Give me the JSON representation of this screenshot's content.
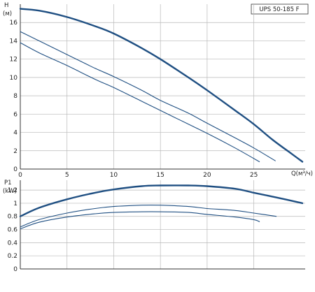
{
  "chart_data": [
    {
      "type": "line",
      "title": "UPS 50-185 F",
      "ylabel_symbol": "H",
      "ylabel_unit": "(м)",
      "xlabel": "Q(м³/ч)",
      "x_ticks": [
        0,
        5,
        10,
        15,
        20,
        25
      ],
      "y_ticks": [
        0,
        2,
        4,
        6,
        8,
        10,
        12,
        14,
        16
      ],
      "xlim": [
        0,
        30.5
      ],
      "ylim": [
        0,
        18
      ],
      "grid": true,
      "colors": {
        "curve": "#1f4f82",
        "grid": "#b8b8b8",
        "axis": "#333333"
      },
      "series": [
        {
          "stroke": "thick",
          "points": [
            [
              0,
              17.5
            ],
            [
              2,
              17.3
            ],
            [
              5,
              16.6
            ],
            [
              8,
              15.6
            ],
            [
              10,
              14.8
            ],
            [
              13,
              13.2
            ],
            [
              15,
              12.0
            ],
            [
              18,
              10.0
            ],
            [
              20,
              8.6
            ],
            [
              23,
              6.4
            ],
            [
              25,
              4.9
            ],
            [
              27,
              3.2
            ],
            [
              29,
              1.7
            ],
            [
              30.2,
              0.8
            ]
          ]
        },
        {
          "stroke": "thin",
          "points": [
            [
              0,
              15.0
            ],
            [
              2,
              14.0
            ],
            [
              5,
              12.5
            ],
            [
              8,
              11.0
            ],
            [
              10,
              10.1
            ],
            [
              13,
              8.6
            ],
            [
              15,
              7.5
            ],
            [
              18,
              6.1
            ],
            [
              20,
              5.0
            ],
            [
              23,
              3.4
            ],
            [
              25,
              2.3
            ],
            [
              27.3,
              0.9
            ]
          ]
        },
        {
          "stroke": "thin",
          "points": [
            [
              0,
              13.8
            ],
            [
              2,
              12.7
            ],
            [
              5,
              11.3
            ],
            [
              8,
              9.8
            ],
            [
              10,
              8.9
            ],
            [
              13,
              7.4
            ],
            [
              15,
              6.4
            ],
            [
              18,
              4.9
            ],
            [
              20,
              3.9
            ],
            [
              23,
              2.3
            ],
            [
              25.6,
              0.8
            ]
          ]
        }
      ]
    },
    {
      "type": "line",
      "ylabel_symbol": "P1",
      "ylabel_unit": "(kW)",
      "x_ticks": [
        0,
        5,
        10,
        15,
        20,
        25
      ],
      "y_ticks": [
        0,
        0.2,
        0.4,
        0.6,
        0.8,
        1,
        1.2
      ],
      "y_tick_labels": [
        "0",
        "0.2",
        "0.4",
        "0.6",
        "0.8",
        "1",
        "1.2"
      ],
      "xlim": [
        0,
        30.5
      ],
      "ylim": [
        0,
        1.35
      ],
      "grid": true,
      "series": [
        {
          "stroke": "thick",
          "points": [
            [
              0,
              0.8
            ],
            [
              2,
              0.93
            ],
            [
              5,
              1.06
            ],
            [
              8,
              1.16
            ],
            [
              10,
              1.21
            ],
            [
              13,
              1.26
            ],
            [
              15,
              1.27
            ],
            [
              18,
              1.27
            ],
            [
              20,
              1.26
            ],
            [
              23,
              1.22
            ],
            [
              25,
              1.16
            ],
            [
              28,
              1.07
            ],
            [
              30.2,
              1.0
            ]
          ]
        },
        {
          "stroke": "thin",
          "points": [
            [
              0,
              0.64
            ],
            [
              2,
              0.75
            ],
            [
              5,
              0.85
            ],
            [
              8,
              0.92
            ],
            [
              10,
              0.95
            ],
            [
              13,
              0.97
            ],
            [
              15,
              0.97
            ],
            [
              18,
              0.95
            ],
            [
              20,
              0.92
            ],
            [
              23,
              0.89
            ],
            [
              25,
              0.85
            ],
            [
              27.4,
              0.8
            ]
          ]
        },
        {
          "stroke": "thin",
          "points": [
            [
              0,
              0.61
            ],
            [
              2,
              0.71
            ],
            [
              5,
              0.79
            ],
            [
              8,
              0.84
            ],
            [
              10,
              0.86
            ],
            [
              13,
              0.87
            ],
            [
              15,
              0.87
            ],
            [
              18,
              0.86
            ],
            [
              20,
              0.83
            ],
            [
              23,
              0.79
            ],
            [
              25,
              0.75
            ],
            [
              25.6,
              0.72
            ]
          ]
        }
      ]
    }
  ]
}
